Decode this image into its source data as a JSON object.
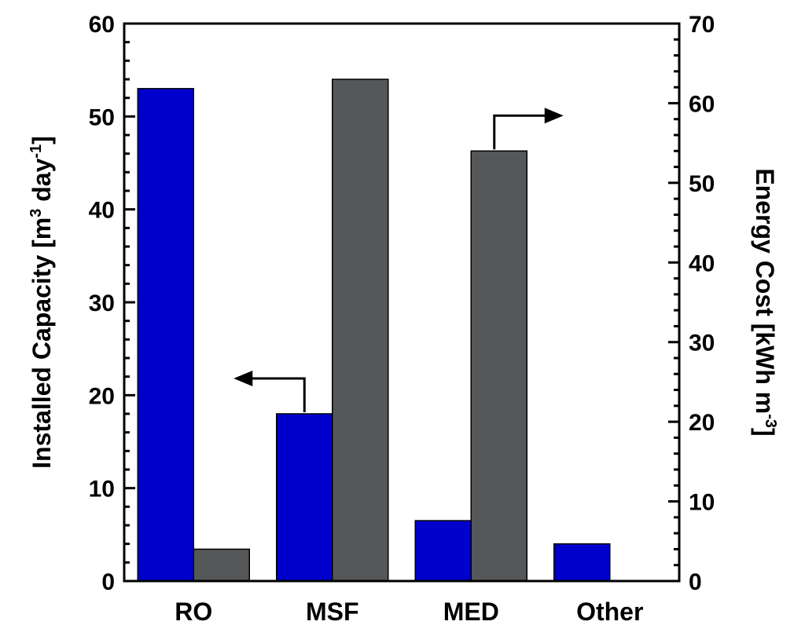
{
  "chart_data": {
    "type": "bar",
    "categories": [
      "RO",
      "MSF",
      "MED",
      "Other"
    ],
    "series": [
      {
        "axis": "left",
        "color": "#0000cc",
        "values": [
          53,
          18,
          6.5,
          4
        ]
      },
      {
        "axis": "right",
        "color": "#555759",
        "values": [
          4,
          63,
          54,
          0
        ]
      }
    ],
    "y_left": {
      "label_main": "Installed Capacity [m",
      "label_sup1": "3",
      "label_mid": " day",
      "label_sup2": "-1",
      "label_end": "]",
      "ylim": [
        0,
        60
      ],
      "ticks": [
        "0",
        "10",
        "20",
        "30",
        "40",
        "50",
        "60"
      ]
    },
    "y_right": {
      "label_main": "Energy Cost [kWh m",
      "label_sup": "-3",
      "label_end": "]",
      "ylim": [
        0,
        70
      ],
      "ticks": [
        "0",
        "10",
        "20",
        "30",
        "40",
        "50",
        "60",
        "70"
      ]
    },
    "grid": false,
    "legend": "none",
    "annotations": [
      {
        "type": "arrow",
        "from_series": 0,
        "category": "MSF",
        "direction": "left"
      },
      {
        "type": "arrow",
        "from_series": 1,
        "category": "MED",
        "direction": "right"
      }
    ]
  }
}
